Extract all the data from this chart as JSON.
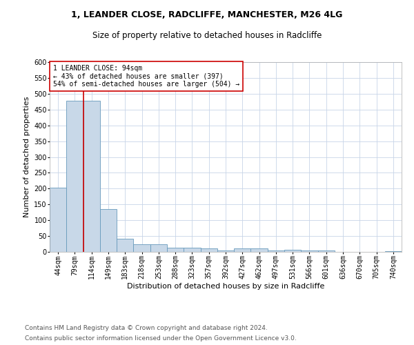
{
  "title1": "1, LEANDER CLOSE, RADCLIFFE, MANCHESTER, M26 4LG",
  "title2": "Size of property relative to detached houses in Radcliffe",
  "xlabel": "Distribution of detached houses by size in Radcliffe",
  "ylabel": "Number of detached properties",
  "categories": [
    "44sqm",
    "79sqm",
    "114sqm",
    "149sqm",
    "183sqm",
    "218sqm",
    "253sqm",
    "288sqm",
    "323sqm",
    "357sqm",
    "392sqm",
    "427sqm",
    "462sqm",
    "497sqm",
    "531sqm",
    "566sqm",
    "601sqm",
    "636sqm",
    "670sqm",
    "705sqm",
    "740sqm"
  ],
  "values": [
    203,
    478,
    478,
    135,
    42,
    25,
    25,
    13,
    13,
    10,
    5,
    10,
    10,
    5,
    7,
    5,
    5,
    1,
    1,
    1,
    3
  ],
  "bar_color": "#c8d8e8",
  "bar_edge_color": "#6699bb",
  "vline_x_index": 1.5,
  "vline_color": "#cc0000",
  "annotation_text": "1 LEANDER CLOSE: 94sqm\n← 43% of detached houses are smaller (397)\n54% of semi-detached houses are larger (504) →",
  "annotation_box_color": "#ffffff",
  "annotation_box_edge": "#cc0000",
  "ylim": [
    0,
    600
  ],
  "yticks": [
    0,
    50,
    100,
    150,
    200,
    250,
    300,
    350,
    400,
    450,
    500,
    550,
    600
  ],
  "footer1": "Contains HM Land Registry data © Crown copyright and database right 2024.",
  "footer2": "Contains public sector information licensed under the Open Government Licence v3.0.",
  "bg_color": "#ffffff",
  "grid_color": "#c8d4e8",
  "title1_fontsize": 9,
  "title2_fontsize": 8.5,
  "xlabel_fontsize": 8,
  "ylabel_fontsize": 8,
  "tick_fontsize": 7,
  "annotation_fontsize": 7,
  "footer_fontsize": 6.5
}
